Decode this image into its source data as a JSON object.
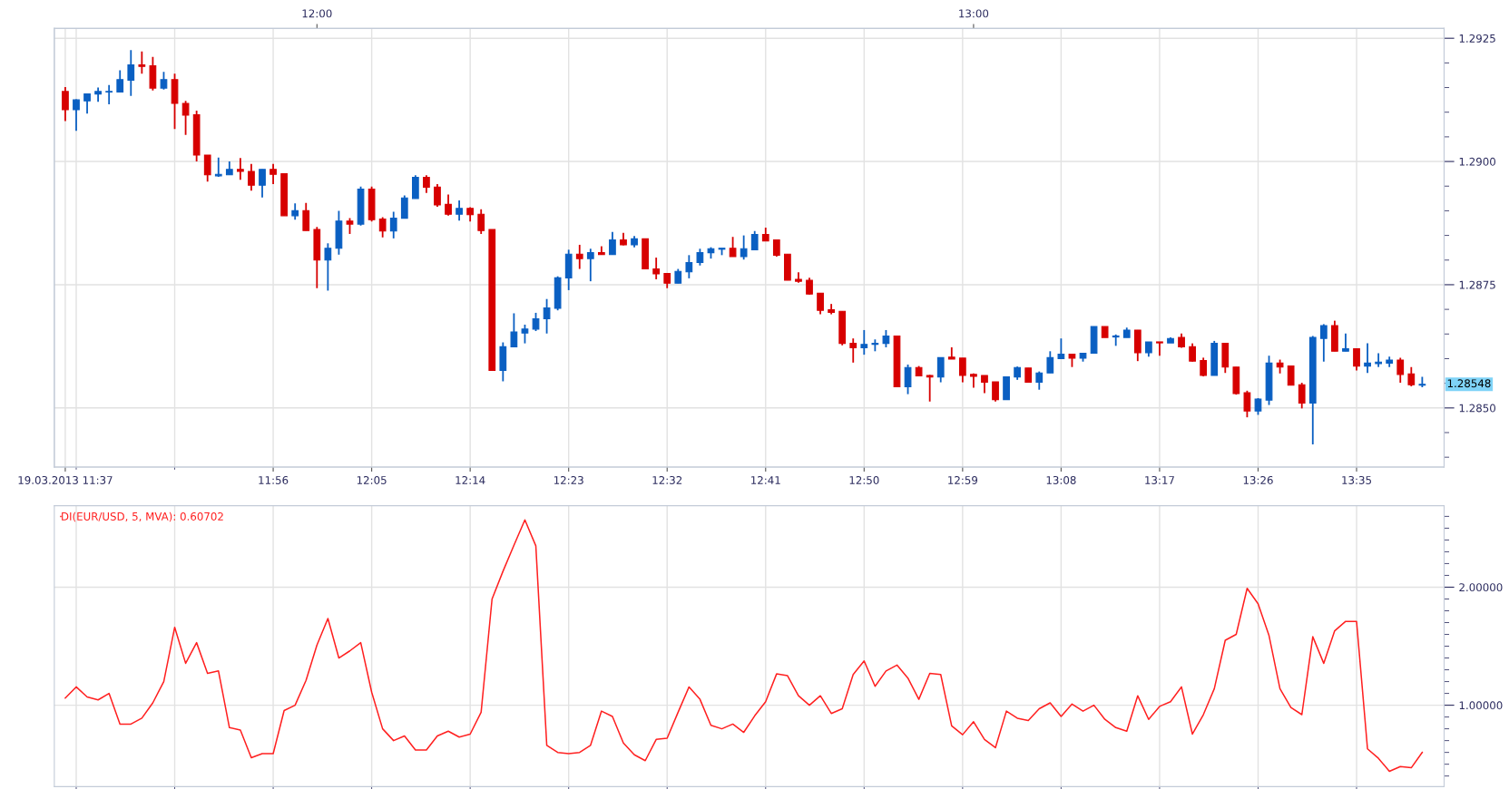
{
  "chart_data": [
    {
      "type": "candlestick",
      "x": [
        "2013-03-19T11:37",
        "2013-03-19T11:38",
        "2013-03-19T11:39",
        "2013-03-19T11:40",
        "2013-03-19T11:41",
        "2013-03-19T11:42",
        "2013-03-19T11:43",
        "2013-03-19T11:44",
        "2013-03-19T11:45",
        "2013-03-19T11:46",
        "2013-03-19T11:47",
        "2013-03-19T11:48",
        "2013-03-19T11:49",
        "2013-03-19T11:50",
        "2013-03-19T11:51",
        "2013-03-19T11:52",
        "2013-03-19T11:53",
        "2013-03-19T11:54",
        "2013-03-19T11:55",
        "2013-03-19T11:56",
        "2013-03-19T11:57",
        "2013-03-19T11:58",
        "2013-03-19T11:59",
        "2013-03-19T12:00",
        "2013-03-19T12:01",
        "2013-03-19T12:02",
        "2013-03-19T12:03",
        "2013-03-19T12:04",
        "2013-03-19T12:05",
        "2013-03-19T12:06",
        "2013-03-19T12:07",
        "2013-03-19T12:08",
        "2013-03-19T12:09",
        "2013-03-19T12:10",
        "2013-03-19T12:11",
        "2013-03-19T12:12",
        "2013-03-19T12:13",
        "2013-03-19T12:14",
        "2013-03-19T12:15",
        "2013-03-19T12:16",
        "2013-03-19T12:17",
        "2013-03-19T12:18",
        "2013-03-19T12:19",
        "2013-03-19T12:20",
        "2013-03-19T12:21",
        "2013-03-19T12:22",
        "2013-03-19T12:23",
        "2013-03-19T12:24",
        "2013-03-19T12:25",
        "2013-03-19T12:26",
        "2013-03-19T12:27",
        "2013-03-19T12:28",
        "2013-03-19T12:29",
        "2013-03-19T12:30",
        "2013-03-19T12:31",
        "2013-03-19T12:32",
        "2013-03-19T12:33",
        "2013-03-19T12:34",
        "2013-03-19T12:35",
        "2013-03-19T12:36",
        "2013-03-19T12:37",
        "2013-03-19T12:38",
        "2013-03-19T12:39",
        "2013-03-19T12:40",
        "2013-03-19T12:41",
        "2013-03-19T12:42",
        "2013-03-19T12:43",
        "2013-03-19T12:44",
        "2013-03-19T12:45",
        "2013-03-19T12:46",
        "2013-03-19T12:47",
        "2013-03-19T12:48",
        "2013-03-19T12:49",
        "2013-03-19T12:50",
        "2013-03-19T12:51",
        "2013-03-19T12:52",
        "2013-03-19T12:53",
        "2013-03-19T12:54",
        "2013-03-19T12:55",
        "2013-03-19T12:56",
        "2013-03-19T12:57",
        "2013-03-19T12:58",
        "2013-03-19T12:59",
        "2013-03-19T13:00",
        "2013-03-19T13:01",
        "2013-03-19T13:02",
        "2013-03-19T13:03",
        "2013-03-19T13:04",
        "2013-03-19T13:05",
        "2013-03-19T13:06",
        "2013-03-19T13:07",
        "2013-03-19T13:08",
        "2013-03-19T13:09",
        "2013-03-19T13:10",
        "2013-03-19T13:11",
        "2013-03-19T13:12",
        "2013-03-19T13:13",
        "2013-03-19T13:14",
        "2013-03-19T13:15",
        "2013-03-19T13:16",
        "2013-03-19T13:17",
        "2013-03-19T13:18",
        "2013-03-19T13:19",
        "2013-03-19T13:20",
        "2013-03-19T13:21",
        "2013-03-19T13:22",
        "2013-03-19T13:23",
        "2013-03-19T13:24",
        "2013-03-19T13:25",
        "2013-03-19T13:26",
        "2013-03-19T13:27",
        "2013-03-19T13:28",
        "2013-03-19T13:29",
        "2013-03-19T13:30",
        "2013-03-19T13:31",
        "2013-03-19T13:32",
        "2013-03-19T13:33",
        "2013-03-19T13:34",
        "2013-03-19T13:35",
        "2013-03-19T13:36",
        "2013-03-19T13:37",
        "2013-03-19T13:38",
        "2013-03-19T13:39",
        "2013-03-19T13:40",
        "2013-03-19T13:41"
      ],
      "ohlc": [
        [
          1.29142,
          1.29151,
          1.29082,
          1.29105
        ],
        [
          1.29105,
          1.29126,
          1.29062,
          1.29125
        ],
        [
          1.29123,
          1.29137,
          1.29097,
          1.29137
        ],
        [
          1.29137,
          1.2915,
          1.29121,
          1.29142
        ],
        [
          1.29141,
          1.29155,
          1.29116,
          1.29142
        ],
        [
          1.29141,
          1.29185,
          1.29141,
          1.29166
        ],
        [
          1.29165,
          1.29226,
          1.29133,
          1.29196
        ],
        [
          1.29196,
          1.29223,
          1.29178,
          1.29193
        ],
        [
          1.29194,
          1.29212,
          1.29144,
          1.29149
        ],
        [
          1.29149,
          1.29182,
          1.29146,
          1.29166
        ],
        [
          1.29166,
          1.29178,
          1.29066,
          1.29118
        ],
        [
          1.29118,
          1.29123,
          1.29054,
          1.29094
        ],
        [
          1.29095,
          1.29103,
          1.29,
          1.29013
        ],
        [
          1.29013,
          1.29013,
          1.28959,
          1.28973
        ],
        [
          1.28971,
          1.29008,
          1.28969,
          1.28974
        ],
        [
          1.28973,
          1.29,
          1.28973,
          1.28984
        ],
        [
          1.28984,
          1.29007,
          1.28963,
          1.2898
        ],
        [
          1.2898,
          1.28995,
          1.28941,
          1.28952
        ],
        [
          1.28952,
          1.28984,
          1.28927,
          1.28984
        ],
        [
          1.28984,
          1.28995,
          1.28954,
          1.28974
        ],
        [
          1.28975,
          1.28975,
          1.2889,
          1.2889
        ],
        [
          1.2889,
          1.28915,
          1.28882,
          1.289
        ],
        [
          1.289,
          1.28916,
          1.2886,
          1.2886
        ],
        [
          1.28862,
          1.28867,
          1.28743,
          1.288
        ],
        [
          1.288,
          1.28834,
          1.28738,
          1.28824
        ],
        [
          1.28824,
          1.289,
          1.28811,
          1.28879
        ],
        [
          1.28879,
          1.28885,
          1.28853,
          1.28873
        ],
        [
          1.28873,
          1.28949,
          1.2887,
          1.28944
        ],
        [
          1.28944,
          1.28949,
          1.28878,
          1.28882
        ],
        [
          1.28883,
          1.28887,
          1.28846,
          1.28859
        ],
        [
          1.28859,
          1.28898,
          1.28844,
          1.28885
        ],
        [
          1.28885,
          1.28931,
          1.28885,
          1.28926
        ],
        [
          1.28925,
          1.28972,
          1.28925,
          1.28968
        ],
        [
          1.28968,
          1.28972,
          1.28936,
          1.28948
        ],
        [
          1.28948,
          1.28954,
          1.28908,
          1.28912
        ],
        [
          1.28913,
          1.28933,
          1.2889,
          1.28893
        ],
        [
          1.28893,
          1.28921,
          1.2888,
          1.28905
        ],
        [
          1.28905,
          1.28907,
          1.28878,
          1.28892
        ],
        [
          1.28893,
          1.28903,
          1.28853,
          1.2886
        ],
        [
          1.28862,
          1.28862,
          1.28576,
          1.28576
        ],
        [
          1.28576,
          1.28633,
          1.28554,
          1.28624
        ],
        [
          1.28624,
          1.28692,
          1.28624,
          1.28654
        ],
        [
          1.28652,
          1.28669,
          1.28631,
          1.2866
        ],
        [
          1.2866,
          1.28693,
          1.28656,
          1.28681
        ],
        [
          1.28681,
          1.28721,
          1.28651,
          1.28703
        ],
        [
          1.28702,
          1.28767,
          1.28698,
          1.28764
        ],
        [
          1.28764,
          1.28821,
          1.28739,
          1.28812
        ],
        [
          1.28812,
          1.28831,
          1.28782,
          1.28803
        ],
        [
          1.28803,
          1.28823,
          1.28757,
          1.28815
        ],
        [
          1.28815,
          1.28828,
          1.28811,
          1.28811
        ],
        [
          1.28811,
          1.28857,
          1.28811,
          1.28841
        ],
        [
          1.28841,
          1.28855,
          1.2883,
          1.28831
        ],
        [
          1.28831,
          1.28849,
          1.28826,
          1.28843
        ],
        [
          1.28843,
          1.28843,
          1.28782,
          1.28782
        ],
        [
          1.28782,
          1.28805,
          1.28761,
          1.28772
        ],
        [
          1.28773,
          1.28773,
          1.28743,
          1.28753
        ],
        [
          1.28753,
          1.28782,
          1.28753,
          1.28777
        ],
        [
          1.28776,
          1.2881,
          1.28763,
          1.28795
        ],
        [
          1.28795,
          1.28823,
          1.28789,
          1.28815
        ],
        [
          1.28815,
          1.28826,
          1.28803,
          1.28823
        ],
        [
          1.28822,
          1.28824,
          1.2881,
          1.28824
        ],
        [
          1.28824,
          1.28847,
          1.28807,
          1.28807
        ],
        [
          1.28807,
          1.2885,
          1.28801,
          1.28823
        ],
        [
          1.28821,
          1.28859,
          1.28821,
          1.28852
        ],
        [
          1.28852,
          1.28866,
          1.28839,
          1.28839
        ],
        [
          1.28841,
          1.28841,
          1.28807,
          1.2881
        ],
        [
          1.28812,
          1.28812,
          1.28759,
          1.28759
        ],
        [
          1.28761,
          1.28775,
          1.28754,
          1.28757
        ],
        [
          1.28759,
          1.28764,
          1.2873,
          1.28731
        ],
        [
          1.28733,
          1.28733,
          1.2869,
          1.28698
        ],
        [
          1.28699,
          1.28711,
          1.2869,
          1.28694
        ],
        [
          1.28696,
          1.28696,
          1.28627,
          1.28631
        ],
        [
          1.28631,
          1.28641,
          1.28592,
          1.28622
        ],
        [
          1.28622,
          1.28658,
          1.28608,
          1.28629
        ],
        [
          1.28629,
          1.28639,
          1.28615,
          1.28631
        ],
        [
          1.28631,
          1.28658,
          1.28623,
          1.28646
        ],
        [
          1.28646,
          1.28646,
          1.28543,
          1.28543
        ],
        [
          1.28543,
          1.28588,
          1.28528,
          1.28582
        ],
        [
          1.28582,
          1.28585,
          1.28565,
          1.28565
        ],
        [
          1.28566,
          1.28567,
          1.28513,
          1.28563
        ],
        [
          1.28563,
          1.28602,
          1.28552,
          1.28602
        ],
        [
          1.28603,
          1.28623,
          1.28599,
          1.28599
        ],
        [
          1.28601,
          1.28601,
          1.28552,
          1.28566
        ],
        [
          1.28568,
          1.2857,
          1.28541,
          1.28564
        ],
        [
          1.28566,
          1.28566,
          1.2853,
          1.28552
        ],
        [
          1.28553,
          1.28553,
          1.28513,
          1.28517
        ],
        [
          1.28517,
          1.28563,
          1.28517,
          1.28563
        ],
        [
          1.28563,
          1.28584,
          1.28557,
          1.28582
        ],
        [
          1.28581,
          1.28581,
          1.28552,
          1.28552
        ],
        [
          1.28552,
          1.28574,
          1.28537,
          1.28571
        ],
        [
          1.28571,
          1.28615,
          1.28571,
          1.28602
        ],
        [
          1.286,
          1.28641,
          1.286,
          1.28609
        ],
        [
          1.28609,
          1.28609,
          1.28583,
          1.28601
        ],
        [
          1.28601,
          1.28611,
          1.28594,
          1.28611
        ],
        [
          1.28611,
          1.28665,
          1.28611,
          1.28665
        ],
        [
          1.28665,
          1.28665,
          1.28643,
          1.28643
        ],
        [
          1.28644,
          1.28649,
          1.28626,
          1.28646
        ],
        [
          1.28643,
          1.28663,
          1.28643,
          1.28658
        ],
        [
          1.28658,
          1.28658,
          1.28595,
          1.28612
        ],
        [
          1.28612,
          1.28634,
          1.28604,
          1.28634
        ],
        [
          1.28634,
          1.28634,
          1.28606,
          1.28632
        ],
        [
          1.28632,
          1.28643,
          1.28632,
          1.28641
        ],
        [
          1.28643,
          1.28651,
          1.28622,
          1.28624
        ],
        [
          1.28624,
          1.28631,
          1.28594,
          1.28595
        ],
        [
          1.28596,
          1.28602,
          1.28564,
          1.28566
        ],
        [
          1.28566,
          1.28636,
          1.28566,
          1.28631
        ],
        [
          1.28631,
          1.28631,
          1.28571,
          1.28583
        ],
        [
          1.28583,
          1.28583,
          1.28527,
          1.28529
        ],
        [
          1.28531,
          1.28535,
          1.28481,
          1.28494
        ],
        [
          1.28494,
          1.2852,
          1.28486,
          1.28518
        ],
        [
          1.28516,
          1.28606,
          1.28506,
          1.28591
        ],
        [
          1.28591,
          1.28598,
          1.2857,
          1.28583
        ],
        [
          1.28585,
          1.28585,
          1.28546,
          1.28546
        ],
        [
          1.28547,
          1.28551,
          1.28499,
          1.2851
        ],
        [
          1.2851,
          1.28646,
          1.28426,
          1.28643
        ],
        [
          1.28641,
          1.2867,
          1.28594,
          1.28667
        ],
        [
          1.28667,
          1.28677,
          1.28615,
          1.28615
        ],
        [
          1.28615,
          1.28651,
          1.28615,
          1.2862
        ],
        [
          1.2862,
          1.2862,
          1.28576,
          1.28585
        ],
        [
          1.28585,
          1.28631,
          1.28571,
          1.28591
        ],
        [
          1.2859,
          1.28611,
          1.28583,
          1.28593
        ],
        [
          1.28591,
          1.28604,
          1.28583,
          1.28597
        ],
        [
          1.28597,
          1.28602,
          1.28551,
          1.28568
        ],
        [
          1.28569,
          1.28583,
          1.28544,
          1.28547
        ],
        [
          1.28546,
          1.28563,
          1.28542,
          1.28548
        ]
      ],
      "colors": [
        "#d70000",
        "#0a5fc2",
        "#0a5fc2",
        "#0a5fc2",
        "#0a5fc2",
        "#0a5fc2",
        "#0a5fc2",
        "#d70000",
        "#d70000",
        "#0a5fc2",
        "#d70000",
        "#d70000",
        "#d70000",
        "#d70000",
        "#0a5fc2",
        "#0a5fc2",
        "#d70000",
        "#d70000",
        "#0a5fc2",
        "#d70000",
        "#d70000",
        "#0a5fc2",
        "#d70000",
        "#d70000",
        "#0a5fc2",
        "#0a5fc2",
        "#d70000",
        "#0a5fc2",
        "#d70000",
        "#d70000",
        "#0a5fc2",
        "#0a5fc2",
        "#0a5fc2",
        "#d70000",
        "#d70000",
        "#d70000",
        "#0a5fc2",
        "#d70000",
        "#d70000",
        "#d70000",
        "#0a5fc2",
        "#0a5fc2",
        "#0a5fc2",
        "#0a5fc2",
        "#0a5fc2",
        "#0a5fc2",
        "#0a5fc2",
        "#d70000",
        "#0a5fc2",
        "#d70000",
        "#0a5fc2",
        "#d70000",
        "#0a5fc2",
        "#d70000",
        "#d70000",
        "#d70000",
        "#0a5fc2",
        "#0a5fc2",
        "#0a5fc2",
        "#0a5fc2",
        "#0a5fc2",
        "#d70000",
        "#0a5fc2",
        "#0a5fc2",
        "#d70000",
        "#d70000",
        "#d70000",
        "#d70000",
        "#d70000",
        "#d70000",
        "#d70000",
        "#d70000",
        "#d70000",
        "#0a5fc2",
        "#0a5fc2",
        "#0a5fc2",
        "#d70000",
        "#0a5fc2",
        "#d70000",
        "#d70000",
        "#0a5fc2",
        "#d70000",
        "#d70000",
        "#d70000",
        "#d70000",
        "#d70000",
        "#0a5fc2",
        "#0a5fc2",
        "#d70000",
        "#0a5fc2",
        "#0a5fc2",
        "#0a5fc2",
        "#d70000",
        "#0a5fc2",
        "#0a5fc2",
        "#d70000",
        "#0a5fc2",
        "#0a5fc2",
        "#d70000",
        "#0a5fc2",
        "#d70000",
        "#0a5fc2",
        "#d70000",
        "#d70000",
        "#d70000",
        "#0a5fc2",
        "#d70000",
        "#d70000",
        "#d70000",
        "#0a5fc2",
        "#0a5fc2",
        "#d70000",
        "#d70000",
        "#d70000",
        "#0a5fc2",
        "#0a5fc2",
        "#d70000",
        "#0a5fc2",
        "#d70000",
        "#0a5fc2",
        "#0a5fc2",
        "#0a5fc2",
        "#d70000",
        "#d70000",
        "#0a5fc2"
      ],
      "xlim": [
        "2013-03-19T11:36",
        "2013-03-19T13:43"
      ],
      "xticks": [
        {
          "value": "2013-03-19T11:37",
          "label": "19.03.2013 11:37"
        },
        {
          "value": "2013-03-19T11:38",
          "label": null
        },
        {
          "value": "2013-03-19T11:47",
          "label": null
        },
        {
          "value": "2013-03-19T11:56",
          "label": "11:56"
        },
        {
          "value": "2013-03-19T12:05",
          "label": "12:05"
        },
        {
          "value": "2013-03-19T12:14",
          "label": "12:14"
        },
        {
          "value": "2013-03-19T12:23",
          "label": "12:23"
        },
        {
          "value": "2013-03-19T12:32",
          "label": "12:32"
        },
        {
          "value": "2013-03-19T12:41",
          "label": "12:41"
        },
        {
          "value": "2013-03-19T12:50",
          "label": "12:50"
        },
        {
          "value": "2013-03-19T12:59",
          "label": "12:59"
        },
        {
          "value": "2013-03-19T13:08",
          "label": "13:08"
        },
        {
          "value": "2013-03-19T13:17",
          "label": "13:17"
        },
        {
          "value": "2013-03-19T13:26",
          "label": "13:26"
        },
        {
          "value": "2013-03-19T13:35",
          "label": "13:35"
        }
      ],
      "x2lim": [
        "2013-03-19T11:36",
        "2013-03-19T13:43"
      ],
      "x2ticks": [
        {
          "value": "2013-03-19T12:00",
          "label": "12:00"
        },
        {
          "value": "2013-03-19T13:00",
          "label": "13:00"
        }
      ],
      "ylim": [
        1.2838,
        1.2927
      ],
      "yticks": [
        {
          "value": 1.285,
          "label": "1.2850"
        },
        1.2875,
        {
          "value": 1.29,
          "label": "1.2900"
        },
        1.2925,
        {
          "value": 1.284,
          "label": null
        },
        {
          "value": 1.2845,
          "label": null
        },
        {
          "value": 1.2855,
          "label": null
        },
        {
          "value": 1.286,
          "label": null
        },
        {
          "value": 1.2865,
          "label": null
        },
        {
          "value": 1.287,
          "label": null
        },
        {
          "value": 1.288,
          "label": null
        },
        {
          "value": 1.2885,
          "label": null
        },
        {
          "value": 1.289,
          "label": null
        },
        {
          "value": 1.2895,
          "label": null
        },
        {
          "value": 1.2905,
          "label": null
        },
        {
          "value": 1.291,
          "label": null
        },
        {
          "value": 1.2915,
          "label": null
        },
        {
          "value": 1.292,
          "label": null
        }
      ],
      "annotations": [
        {
          "text": "1.28548",
          "x": "2013-03-19T13:41",
          "y": 1.28548
        }
      ],
      "grid": true
    },
    {
      "type": "line",
      "x": [
        "2013-03-19T11:37",
        "2013-03-19T11:38",
        "2013-03-19T11:39",
        "2013-03-19T11:40",
        "2013-03-19T11:41",
        "2013-03-19T11:42",
        "2013-03-19T11:43",
        "2013-03-19T11:44",
        "2013-03-19T11:45",
        "2013-03-19T11:46",
        "2013-03-19T11:47",
        "2013-03-19T11:48",
        "2013-03-19T11:49",
        "2013-03-19T11:50",
        "2013-03-19T11:51",
        "2013-03-19T11:52",
        "2013-03-19T11:53",
        "2013-03-19T11:54",
        "2013-03-19T11:55",
        "2013-03-19T11:56",
        "2013-03-19T11:57",
        "2013-03-19T11:58",
        "2013-03-19T11:59",
        "2013-03-19T12:00",
        "2013-03-19T12:01",
        "2013-03-19T12:02",
        "2013-03-19T12:03",
        "2013-03-19T12:04",
        "2013-03-19T12:05",
        "2013-03-19T12:06",
        "2013-03-19T12:07",
        "2013-03-19T12:08",
        "2013-03-19T12:09",
        "2013-03-19T12:10",
        "2013-03-19T12:11",
        "2013-03-19T12:12",
        "2013-03-19T12:13",
        "2013-03-19T12:14",
        "2013-03-19T12:15",
        "2013-03-19T12:16",
        "2013-03-19T12:17",
        "2013-03-19T12:18",
        "2013-03-19T12:19",
        "2013-03-19T12:20",
        "2013-03-19T12:21",
        "2013-03-19T12:22",
        "2013-03-19T12:23",
        "2013-03-19T12:24",
        "2013-03-19T12:25",
        "2013-03-19T12:26",
        "2013-03-19T12:27",
        "2013-03-19T12:28",
        "2013-03-19T12:29",
        "2013-03-19T12:30",
        "2013-03-19T12:31",
        "2013-03-19T12:32",
        "2013-03-19T12:33",
        "2013-03-19T12:34",
        "2013-03-19T12:35",
        "2013-03-19T12:36",
        "2013-03-19T12:37",
        "2013-03-19T12:38",
        "2013-03-19T12:39",
        "2013-03-19T12:40",
        "2013-03-19T12:41",
        "2013-03-19T12:42",
        "2013-03-19T12:43",
        "2013-03-19T12:44",
        "2013-03-19T12:45",
        "2013-03-19T12:46",
        "2013-03-19T12:47",
        "2013-03-19T12:48",
        "2013-03-19T12:49",
        "2013-03-19T12:50",
        "2013-03-19T12:51",
        "2013-03-19T12:52",
        "2013-03-19T12:53",
        "2013-03-19T12:54",
        "2013-03-19T12:55",
        "2013-03-19T12:56",
        "2013-03-19T12:57",
        "2013-03-19T12:58",
        "2013-03-19T12:59",
        "2013-03-19T13:00",
        "2013-03-19T13:01",
        "2013-03-19T13:02",
        "2013-03-19T13:03",
        "2013-03-19T13:04",
        "2013-03-19T13:05",
        "2013-03-19T13:06",
        "2013-03-19T13:07",
        "2013-03-19T13:08",
        "2013-03-19T13:09",
        "2013-03-19T13:10",
        "2013-03-19T13:11",
        "2013-03-19T13:12",
        "2013-03-19T13:13",
        "2013-03-19T13:14",
        "2013-03-19T13:15",
        "2013-03-19T13:16",
        "2013-03-19T13:17",
        "2013-03-19T13:18",
        "2013-03-19T13:19",
        "2013-03-19T13:20",
        "2013-03-19T13:21",
        "2013-03-19T13:22",
        "2013-03-19T13:23",
        "2013-03-19T13:24",
        "2013-03-19T13:25",
        "2013-03-19T13:26",
        "2013-03-19T13:27",
        "2013-03-19T13:28",
        "2013-03-19T13:29",
        "2013-03-19T13:30",
        "2013-03-19T13:31",
        "2013-03-19T13:32",
        "2013-03-19T13:33",
        "2013-03-19T13:34",
        "2013-03-19T13:35",
        "2013-03-19T13:36",
        "2013-03-19T13:37",
        "2013-03-19T13:38",
        "2013-03-19T13:39",
        "2013-03-19T13:40",
        "2013-03-19T13:41"
      ],
      "series": [
        {
          "name": "DI(EUR/USD, 5, MVA): 0.60702",
          "color": "#ff2020",
          "values": [
            1.06,
            1.155,
            1.07,
            1.045,
            1.1,
            0.84,
            0.84,
            0.89,
            1.02,
            1.2,
            1.66,
            1.355,
            1.53,
            1.27,
            1.29,
            0.81,
            0.79,
            0.555,
            0.59,
            0.59,
            0.955,
            1.0,
            1.21,
            1.51,
            1.735,
            1.4,
            1.46,
            1.53,
            1.11,
            0.8,
            0.7,
            0.74,
            0.62,
            0.62,
            0.74,
            0.78,
            0.73,
            0.755,
            0.94,
            1.9,
            2.135,
            2.355,
            2.57,
            2.35,
            0.66,
            0.6,
            0.59,
            0.6,
            0.66,
            0.95,
            0.905,
            0.68,
            0.58,
            0.53,
            0.71,
            0.72,
            0.94,
            1.155,
            1.05,
            0.83,
            0.8,
            0.84,
            0.77,
            0.91,
            1.03,
            1.265,
            1.25,
            1.08,
            1.0,
            1.08,
            0.93,
            0.97,
            1.26,
            1.375,
            1.16,
            1.29,
            1.34,
            1.23,
            1.05,
            1.27,
            1.26,
            0.825,
            0.75,
            0.86,
            0.71,
            0.64,
            0.95,
            0.89,
            0.87,
            0.97,
            1.02,
            0.905,
            1.01,
            0.95,
            1.0,
            0.88,
            0.81,
            0.78,
            1.08,
            0.88,
            0.99,
            1.03,
            1.155,
            0.755,
            0.92,
            1.14,
            1.55,
            1.6,
            1.99,
            1.86,
            1.59,
            1.14,
            0.98,
            0.92,
            1.58,
            1.355,
            1.63,
            1.71,
            1.71,
            0.63,
            0.55,
            0.44,
            0.48,
            0.47,
            0.6
          ]
        }
      ],
      "xlim": [
        "2013-03-19T11:36",
        "2013-03-19T13:43"
      ],
      "xticks": [
        {
          "value": "2013-03-19T11:38",
          "label": null
        },
        {
          "value": "2013-03-19T11:47",
          "label": null
        },
        {
          "value": "2013-03-19T11:56",
          "label": null
        },
        {
          "value": "2013-03-19T12:05",
          "label": null
        },
        {
          "value": "2013-03-19T12:14",
          "label": null
        },
        {
          "value": "2013-03-19T12:23",
          "label": null
        },
        {
          "value": "2013-03-19T12:32",
          "label": null
        },
        {
          "value": "2013-03-19T12:41",
          "label": null
        },
        {
          "value": "2013-03-19T12:50",
          "label": null
        },
        {
          "value": "2013-03-19T12:59",
          "label": null
        },
        {
          "value": "2013-03-19T13:08",
          "label": null
        },
        {
          "value": "2013-03-19T13:17",
          "label": null
        },
        {
          "value": "2013-03-19T13:26",
          "label": null
        },
        {
          "value": "2013-03-19T13:35",
          "label": null
        }
      ],
      "ylim": [
        0.31,
        2.69
      ],
      "yticks": [
        {
          "value": 1,
          "label": "1.00000"
        },
        {
          "value": 2,
          "label": "2.00000"
        },
        {
          "value": 0.4,
          "label": null
        },
        {
          "value": 0.5,
          "label": null
        },
        {
          "value": 0.6,
          "label": null
        },
        {
          "value": 0.7,
          "label": null
        },
        {
          "value": 0.8,
          "label": null
        },
        {
          "value": 0.9,
          "label": null
        },
        {
          "value": 1.1,
          "label": null
        },
        {
          "value": 1.2,
          "label": null
        },
        {
          "value": 1.3,
          "label": null
        },
        {
          "value": 1.4,
          "label": null
        },
        {
          "value": 1.5,
          "label": null
        },
        {
          "value": 1.6,
          "label": null
        },
        {
          "value": 1.7,
          "label": null
        },
        {
          "value": 1.8,
          "label": null
        },
        {
          "value": 1.9,
          "label": null
        },
        {
          "value": 2.1,
          "label": null
        },
        {
          "value": 2.2,
          "label": null
        },
        {
          "value": 2.3,
          "label": null
        },
        {
          "value": 2.4,
          "label": null
        },
        {
          "value": 2.5,
          "label": null
        },
        {
          "value": 2.6,
          "label": null
        }
      ],
      "tick_labels": "y",
      "legend": "top left",
      "grid": true
    }
  ]
}
